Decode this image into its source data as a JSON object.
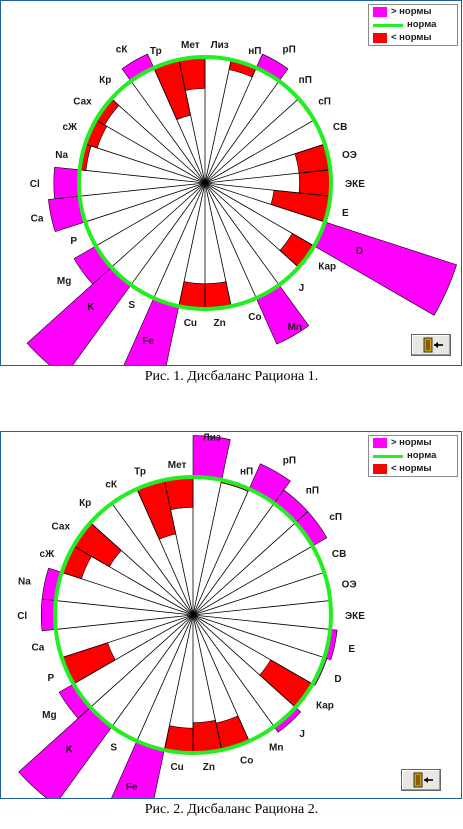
{
  "colors": {
    "above": "#ff00ff",
    "norm": "#22ee22",
    "below": "#ff0000",
    "spoke": "#000000"
  },
  "legend": {
    "above": "> нормы",
    "norm": "норма",
    "below": "< нормы"
  },
  "captions": [
    "Рис. 1. Дисбаланс Рациона 1.",
    "Рис. 2. Дисбаланс Рациона 2."
  ],
  "icons": {
    "exit": "exit-door-icon"
  },
  "chart_data": [
    {
      "type": "radial-bar",
      "title": "Рис. 1. Дисбаланс Рациона 1.",
      "norm": 1.0,
      "categories": [
        "Лиз",
        "нП",
        "рП",
        "пП",
        "сП",
        "СВ",
        "ОЭ",
        "ЭКЕ",
        "Е",
        "D",
        "Кар",
        "J",
        "Mn",
        "Co",
        "Zn",
        "Cu",
        "Fe",
        "S",
        "K",
        "Mg",
        "P",
        "Ca",
        "Cl",
        "Na",
        "сЖ",
        "Сах",
        "Кр",
        "сК",
        "Тр",
        "Мет"
      ],
      "values": [
        1.0,
        0.92,
        1.12,
        1.0,
        1.0,
        1.0,
        0.75,
        0.75,
        0.55,
        2.1,
        0.8,
        1.0,
        1.4,
        1.0,
        0.8,
        0.8,
        1.6,
        1.0,
        1.9,
        1.2,
        1.0,
        1.25,
        1.2,
        0.95,
        0.9,
        0.92,
        1.0,
        1.12,
        0.55,
        0.75
      ]
    },
    {
      "type": "radial-bar",
      "title": "Рис. 2. Дисбаланс Рациона 2.",
      "norm": 1.0,
      "categories": [
        "Лиз",
        "нП",
        "рП",
        "пП",
        "сП",
        "СВ",
        "ОЭ",
        "ЭКЕ",
        "Е",
        "D",
        "Кар",
        "J",
        "Mn",
        "Co",
        "Zn",
        "Cu",
        "Fe",
        "S",
        "K",
        "Mg",
        "P",
        "Ca",
        "Cl",
        "Na",
        "сЖ",
        "Сах",
        "Кр",
        "сК",
        "Тр",
        "Мет"
      ],
      "values": [
        1.3,
        0.98,
        1.2,
        1.12,
        1.12,
        1.0,
        1.0,
        1.0,
        1.05,
        1.02,
        0.65,
        1.05,
        1.0,
        0.8,
        0.78,
        0.82,
        1.5,
        1.0,
        1.7,
        1.12,
        0.65,
        1.0,
        1.1,
        1.1,
        0.85,
        0.7,
        1.0,
        1.0,
        0.6,
        0.78
      ]
    }
  ]
}
